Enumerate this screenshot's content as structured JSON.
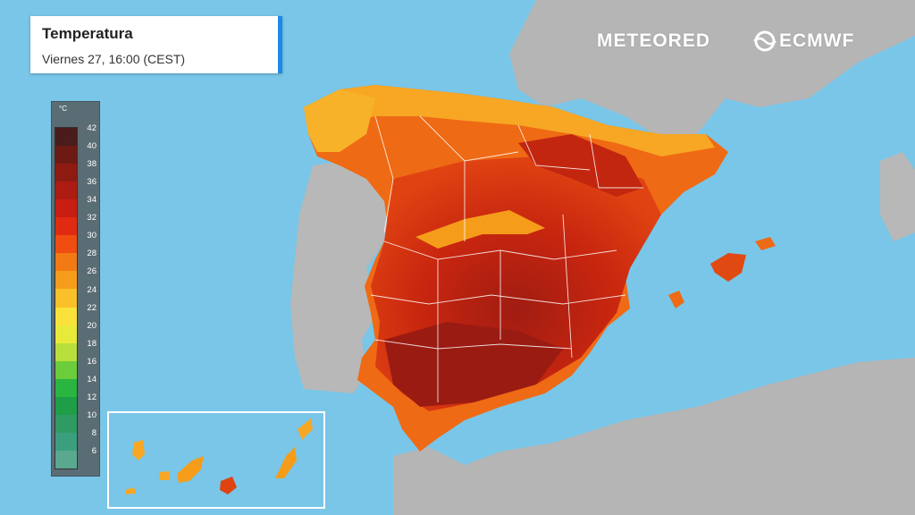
{
  "header": {
    "title": "Temperatura",
    "subtitle": "Viernes 27, 16:00 (CEST)"
  },
  "brands": {
    "meteored": "METEORED",
    "ecmwf": "ECMWF"
  },
  "legend": {
    "unit": "°C",
    "ticks": [
      "42",
      "40",
      "38",
      "36",
      "34",
      "32",
      "30",
      "28",
      "26",
      "24",
      "22",
      "20",
      "18",
      "16",
      "14",
      "12",
      "10",
      "8",
      "6"
    ],
    "colors": [
      "#4a1c1c",
      "#6d1a14",
      "#8e1b12",
      "#ad1c12",
      "#c81d12",
      "#e02b12",
      "#ef4d12",
      "#f27a14",
      "#f59d1a",
      "#f9c02a",
      "#fbe23a",
      "#e8ea3a",
      "#b9df3c",
      "#6bcc3c",
      "#2ab540",
      "#1f9e48",
      "#2f9a62",
      "#3b9f7d",
      "#5aa890"
    ]
  },
  "colors": {
    "sea": "#79c6e8",
    "land": "#b4b4b4",
    "accent": "#1e88e5"
  }
}
